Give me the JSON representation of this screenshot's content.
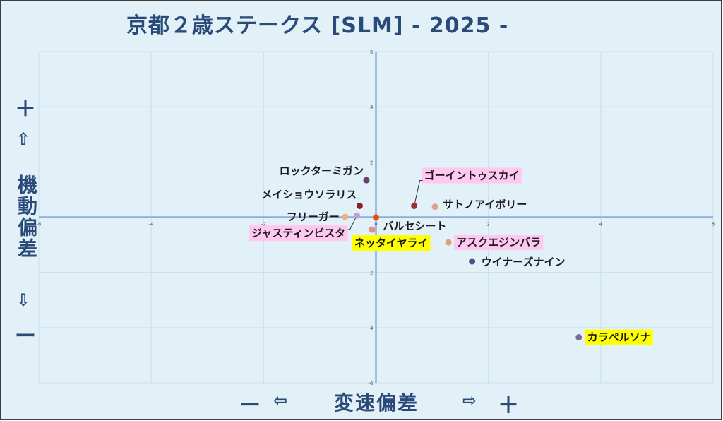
{
  "title": "京都２歳ステークス [SLM]  - 2025 -",
  "y_axis": {
    "plus": "＋",
    "up_arrow": "⇧",
    "label": "機動偏差",
    "down_arrow": "⇩",
    "minus": "ー"
  },
  "x_axis": {
    "minus": "ー",
    "left_arrow": "⇦",
    "label": "変速偏差",
    "right_arrow": "⇨",
    "plus": "＋"
  },
  "colors": {
    "background": "#e2f0f7",
    "axis": "#8aaedc",
    "grid": "#c9dfec",
    "title": "#2a4a7a",
    "highlight_pink": "#ffc8f0",
    "highlight_yellow": "#ffff00"
  },
  "chart_data": {
    "type": "scatter",
    "xlim": [
      -6,
      6
    ],
    "ylim": [
      -6,
      6
    ],
    "x_ticks": [
      -6,
      -4,
      -2,
      0,
      2,
      4,
      6
    ],
    "y_ticks": [
      6,
      4,
      2,
      0,
      -2,
      -4,
      -6
    ],
    "tick_labels": {
      "x": [
        "-6",
        "-4",
        "-2",
        "0",
        "2",
        "4",
        "6"
      ],
      "y": [
        "6",
        "4",
        "2",
        "0",
        "-2",
        "-4",
        "-6"
      ]
    },
    "grid": true,
    "points": [
      {
        "name": "ロックターミガン",
        "x": -0.17,
        "y": 1.34,
        "color": "#6a3f6a",
        "highlight": "none"
      },
      {
        "name": "ゴーイントゥスカイ",
        "x": 0.68,
        "y": 0.41,
        "color": "#a03030",
        "highlight": "pink"
      },
      {
        "name": "サトノアイボリー",
        "x": 1.05,
        "y": 0.38,
        "color": "#e0a090",
        "highlight": "none"
      },
      {
        "name": "メイショウソラリス",
        "x": -0.29,
        "y": 0.41,
        "color": "#8a2020",
        "highlight": "none"
      },
      {
        "name": "フリーガー",
        "x": -0.55,
        "y": 0.01,
        "color": "#f0b080",
        "highlight": "none"
      },
      {
        "name": "ジャスティンビスタ",
        "x": -0.34,
        "y": 0.06,
        "color": "#c0a0d0",
        "highlight": "pink"
      },
      {
        "name": "バルセシート",
        "x": 0.0,
        "y": -0.01,
        "color": "#e05010",
        "highlight": "none"
      },
      {
        "name": "ネッタイヤライ",
        "x": -0.07,
        "y": -0.45,
        "color": "#e09090",
        "highlight": "yellow"
      },
      {
        "name": "アスクエジンバラ",
        "x": 1.29,
        "y": -0.91,
        "color": "#e0a070",
        "highlight": "pink"
      },
      {
        "name": "ウイナーズナイン",
        "x": 1.71,
        "y": -1.6,
        "color": "#5a4a8a",
        "highlight": "none"
      },
      {
        "name": "カラペルソナ",
        "x": 3.61,
        "y": -4.35,
        "color": "#7a6a9a",
        "highlight": "yellow"
      }
    ]
  }
}
